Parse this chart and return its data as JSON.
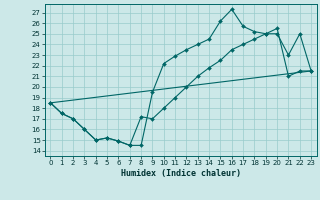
{
  "xlabel": "Humidex (Indice chaleur)",
  "bg_color": "#cce8e8",
  "grid_color": "#99cccc",
  "line_color": "#006666",
  "xlim": [
    -0.5,
    23.5
  ],
  "ylim": [
    13.5,
    27.8
  ],
  "yticks": [
    14,
    15,
    16,
    17,
    18,
    19,
    20,
    21,
    22,
    23,
    24,
    25,
    26,
    27
  ],
  "xticks": [
    0,
    1,
    2,
    3,
    4,
    5,
    6,
    7,
    8,
    9,
    10,
    11,
    12,
    13,
    14,
    15,
    16,
    17,
    18,
    19,
    20,
    21,
    22,
    23
  ],
  "line1_x": [
    0,
    1,
    2,
    3,
    4,
    5,
    6,
    7,
    8,
    9,
    10,
    11,
    12,
    13,
    14,
    15,
    16,
    17,
    18,
    19,
    20,
    21,
    22,
    23
  ],
  "line1_y": [
    18.5,
    17.5,
    17.0,
    16.0,
    15.0,
    15.2,
    14.9,
    14.5,
    14.5,
    19.5,
    22.2,
    22.9,
    23.5,
    24.0,
    24.5,
    26.2,
    27.3,
    25.7,
    25.2,
    25.0,
    25.0,
    23.0,
    25.0,
    21.5
  ],
  "line2_x": [
    0,
    1,
    2,
    3,
    4,
    5,
    6,
    7,
    8,
    9,
    10,
    11,
    12,
    13,
    14,
    15,
    16,
    17,
    18,
    19,
    20,
    21,
    22,
    23
  ],
  "line2_y": [
    18.5,
    17.5,
    17.0,
    16.0,
    15.0,
    15.2,
    14.9,
    14.5,
    17.2,
    17.0,
    18.0,
    19.0,
    20.0,
    21.0,
    21.8,
    22.5,
    23.5,
    24.0,
    24.5,
    25.0,
    25.5,
    21.0,
    21.5,
    21.5
  ],
  "line3_x": [
    0,
    23
  ],
  "line3_y": [
    18.5,
    21.5
  ]
}
